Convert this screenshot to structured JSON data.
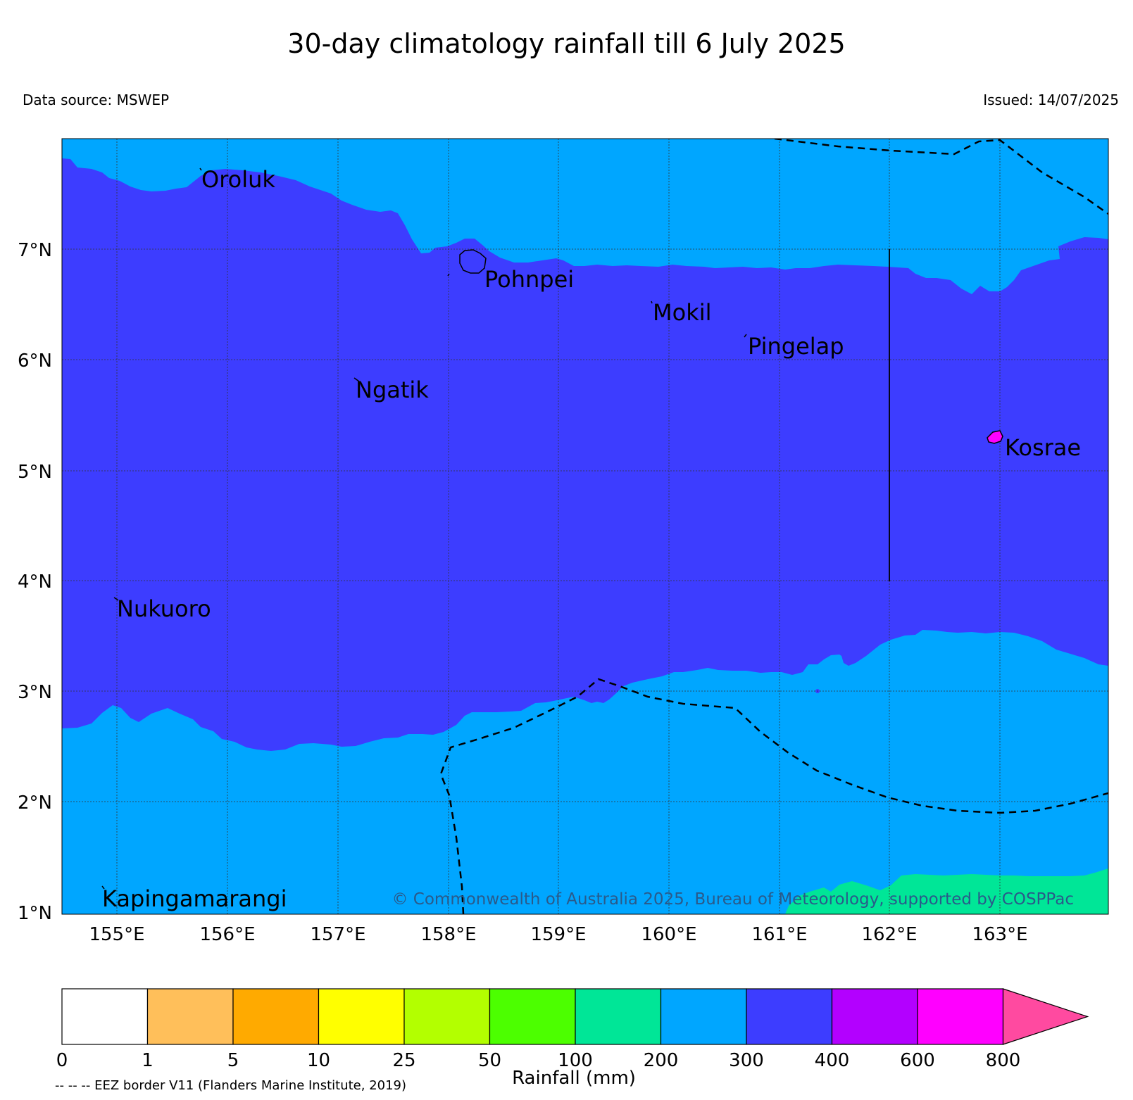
{
  "header": {
    "title": "30-day climatology rainfall till 6 July 2025",
    "data_source": "Data source: MSWEP",
    "issued": "Issued: 14/07/2025"
  },
  "map": {
    "lat_ticks": [
      "7°N",
      "6°N",
      "5°N",
      "4°N",
      "3°N",
      "2°N",
      "1°N"
    ],
    "lon_ticks": [
      "155°E",
      "156°E",
      "157°E",
      "158°E",
      "159°E",
      "160°E",
      "161°E",
      "162°E",
      "163°E"
    ],
    "places": [
      {
        "name": "Oroluk"
      },
      {
        "name": "Pohnpei"
      },
      {
        "name": "Mokil"
      },
      {
        "name": "Pingelap"
      },
      {
        "name": "Ngatik"
      },
      {
        "name": "Kosrae"
      },
      {
        "name": "Nukuoro"
      },
      {
        "name": "Kapingamarangi"
      }
    ],
    "copyright": "© Commonwealth of Australia 2025, Bureau of Meteorology, supported by COSPPac",
    "colors": {
      "band_200_300": "#00a6ff",
      "band_300_400": "#3d3dff",
      "band_100_200": "#00e697"
    }
  },
  "legend": {
    "label": "Rainfall (mm)",
    "ticks": [
      "0",
      "1",
      "5",
      "10",
      "25",
      "50",
      "100",
      "200",
      "300",
      "400",
      "600",
      "800"
    ],
    "colors": [
      "#ffffff",
      "#ffbf5a",
      "#ffaa00",
      "#ffff00",
      "#b3ff00",
      "#4cff00",
      "#00e697",
      "#00a6ff",
      "#3d3dff",
      "#b300ff",
      "#ff00ff",
      "#ff4aa0"
    ]
  },
  "footnote": "-- -- -- EEZ border V11 (Flanders Marine Institute, 2019)"
}
